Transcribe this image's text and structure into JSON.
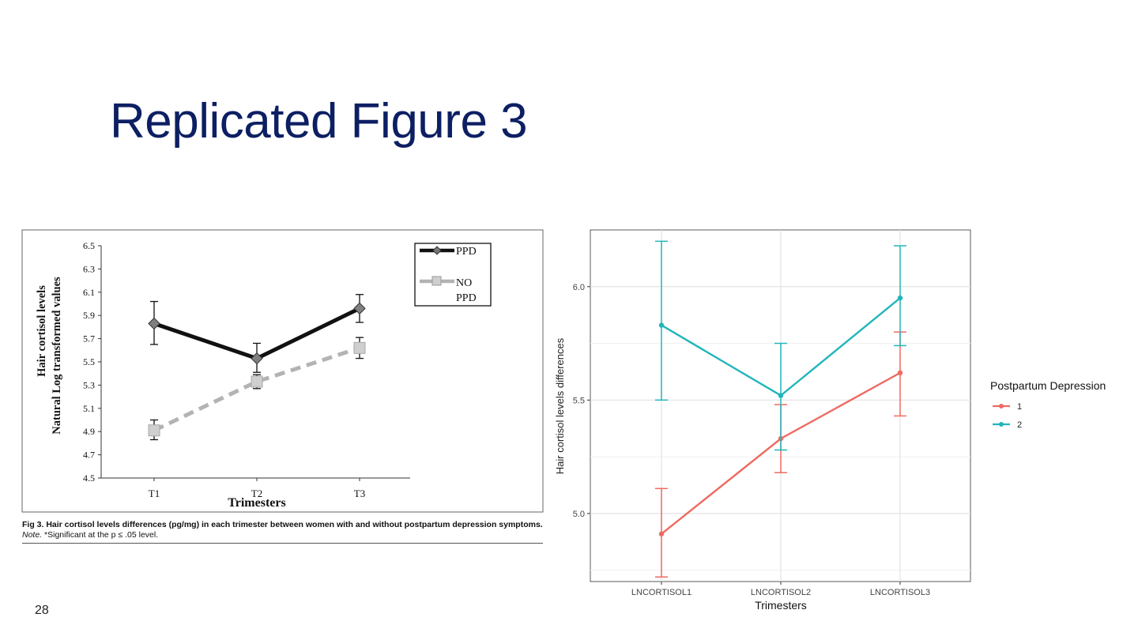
{
  "slide": {
    "title": "Replicated Figure 3",
    "page_number": "28"
  },
  "caption": {
    "fig_label": "Fig 3.",
    "bold_text": " Hair cortisol levels differences (pg/mg) in each trimester between women with and without postpartum depression symptoms.",
    "note_label": " Note.",
    "note_text": " *Significant at the p ≤ .05 level."
  },
  "chart_data": [
    {
      "type": "line",
      "title": "",
      "xlabel": "Trimesters",
      "ylabel": "Hair cortisol levels",
      "ylabel2": "Natural Log transformed values",
      "categories": [
        "T1",
        "T2",
        "T3"
      ],
      "ylim": [
        4.5,
        6.5
      ],
      "yticks": [
        "4.5",
        "4.7",
        "4.9",
        "5.1",
        "5.3",
        "5.5",
        "5.7",
        "5.9",
        "6.1",
        "6.3",
        "6.5"
      ],
      "legend_position": "top-right",
      "series": [
        {
          "name": "PPD",
          "values": [
            5.83,
            5.53,
            5.96
          ],
          "err_low": [
            5.65,
            5.41,
            5.84
          ],
          "err_high": [
            6.02,
            5.66,
            6.08
          ],
          "color": "#111111",
          "marker": "diamond"
        },
        {
          "name": "NO PPD",
          "values": [
            4.91,
            5.33,
            5.62
          ],
          "err_low": [
            4.83,
            5.27,
            5.53
          ],
          "err_high": [
            5.0,
            5.39,
            5.71
          ],
          "color": "#b3b3b3",
          "marker": "square"
        }
      ]
    },
    {
      "type": "line",
      "title": "",
      "xlabel": "Trimesters",
      "ylabel": "Hair cortisol levels differences",
      "categories": [
        "LNCORTISOL1",
        "LNCORTISOL2",
        "LNCORTISOL3"
      ],
      "ylim": [
        4.7,
        6.25
      ],
      "yticks": [
        "5.0",
        "5.5",
        "6.0"
      ],
      "grid": true,
      "legend_title": "Postpartum Depression",
      "legend_position": "right",
      "series": [
        {
          "name": "1",
          "values": [
            4.91,
            5.33,
            5.62
          ],
          "err_low": [
            4.72,
            5.18,
            5.43
          ],
          "err_high": [
            5.11,
            5.48,
            5.8
          ],
          "color": "#ef6a61"
        },
        {
          "name": "2",
          "values": [
            5.83,
            5.52,
            5.95
          ],
          "err_low": [
            5.5,
            5.28,
            5.74
          ],
          "err_high": [
            6.2,
            5.75,
            6.18
          ],
          "color": "#22b5bb"
        }
      ]
    }
  ]
}
